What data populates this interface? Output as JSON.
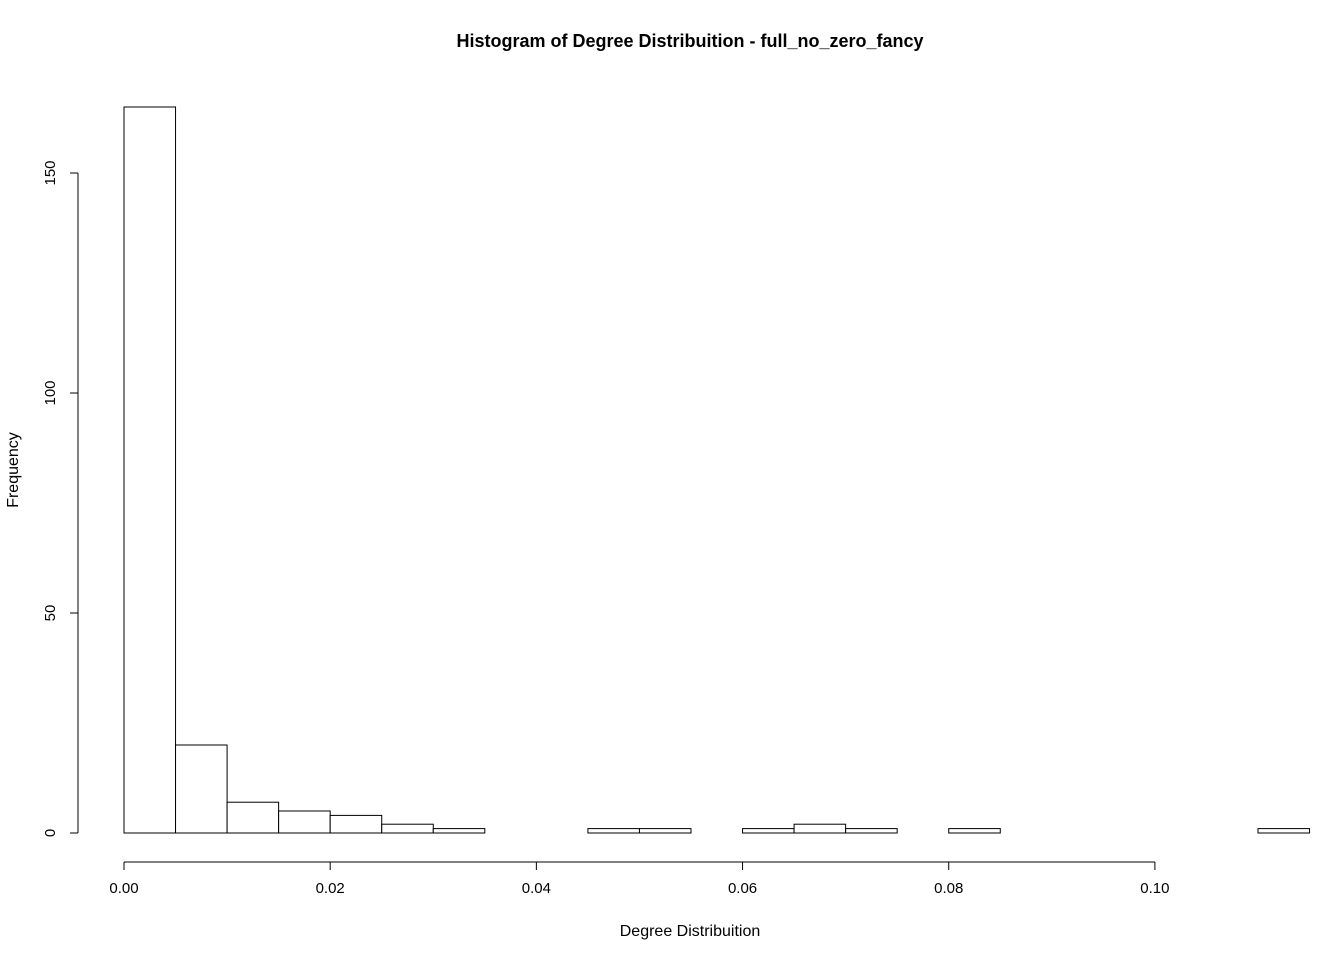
{
  "chart_data": {
    "type": "bar",
    "title": "Histogram of Degree Distribuition - full_no_zero_fancy",
    "xlabel": "Degree Distribuition",
    "ylabel": "Frequency",
    "bin_width": 0.005,
    "bin_start": 0.0,
    "values": [
      165,
      20,
      7,
      5,
      4,
      2,
      1,
      0,
      0,
      1,
      1,
      0,
      1,
      2,
      1,
      0,
      1,
      0,
      0,
      0,
      0,
      0,
      1
    ],
    "xlim": [
      0,
      0.11
    ],
    "ylim": [
      0,
      165
    ],
    "x_ticks": [
      0.0,
      0.02,
      0.04,
      0.06,
      0.08,
      0.1
    ],
    "x_tick_labels": [
      "0.00",
      "0.02",
      "0.04",
      "0.06",
      "0.08",
      "0.10"
    ],
    "y_ticks": [
      0,
      50,
      100,
      150
    ],
    "y_tick_labels": [
      "0",
      "50",
      "100",
      "150"
    ],
    "bar_fill": "#ffffff",
    "bar_stroke": "#000000",
    "grid": false,
    "legend": "none"
  }
}
